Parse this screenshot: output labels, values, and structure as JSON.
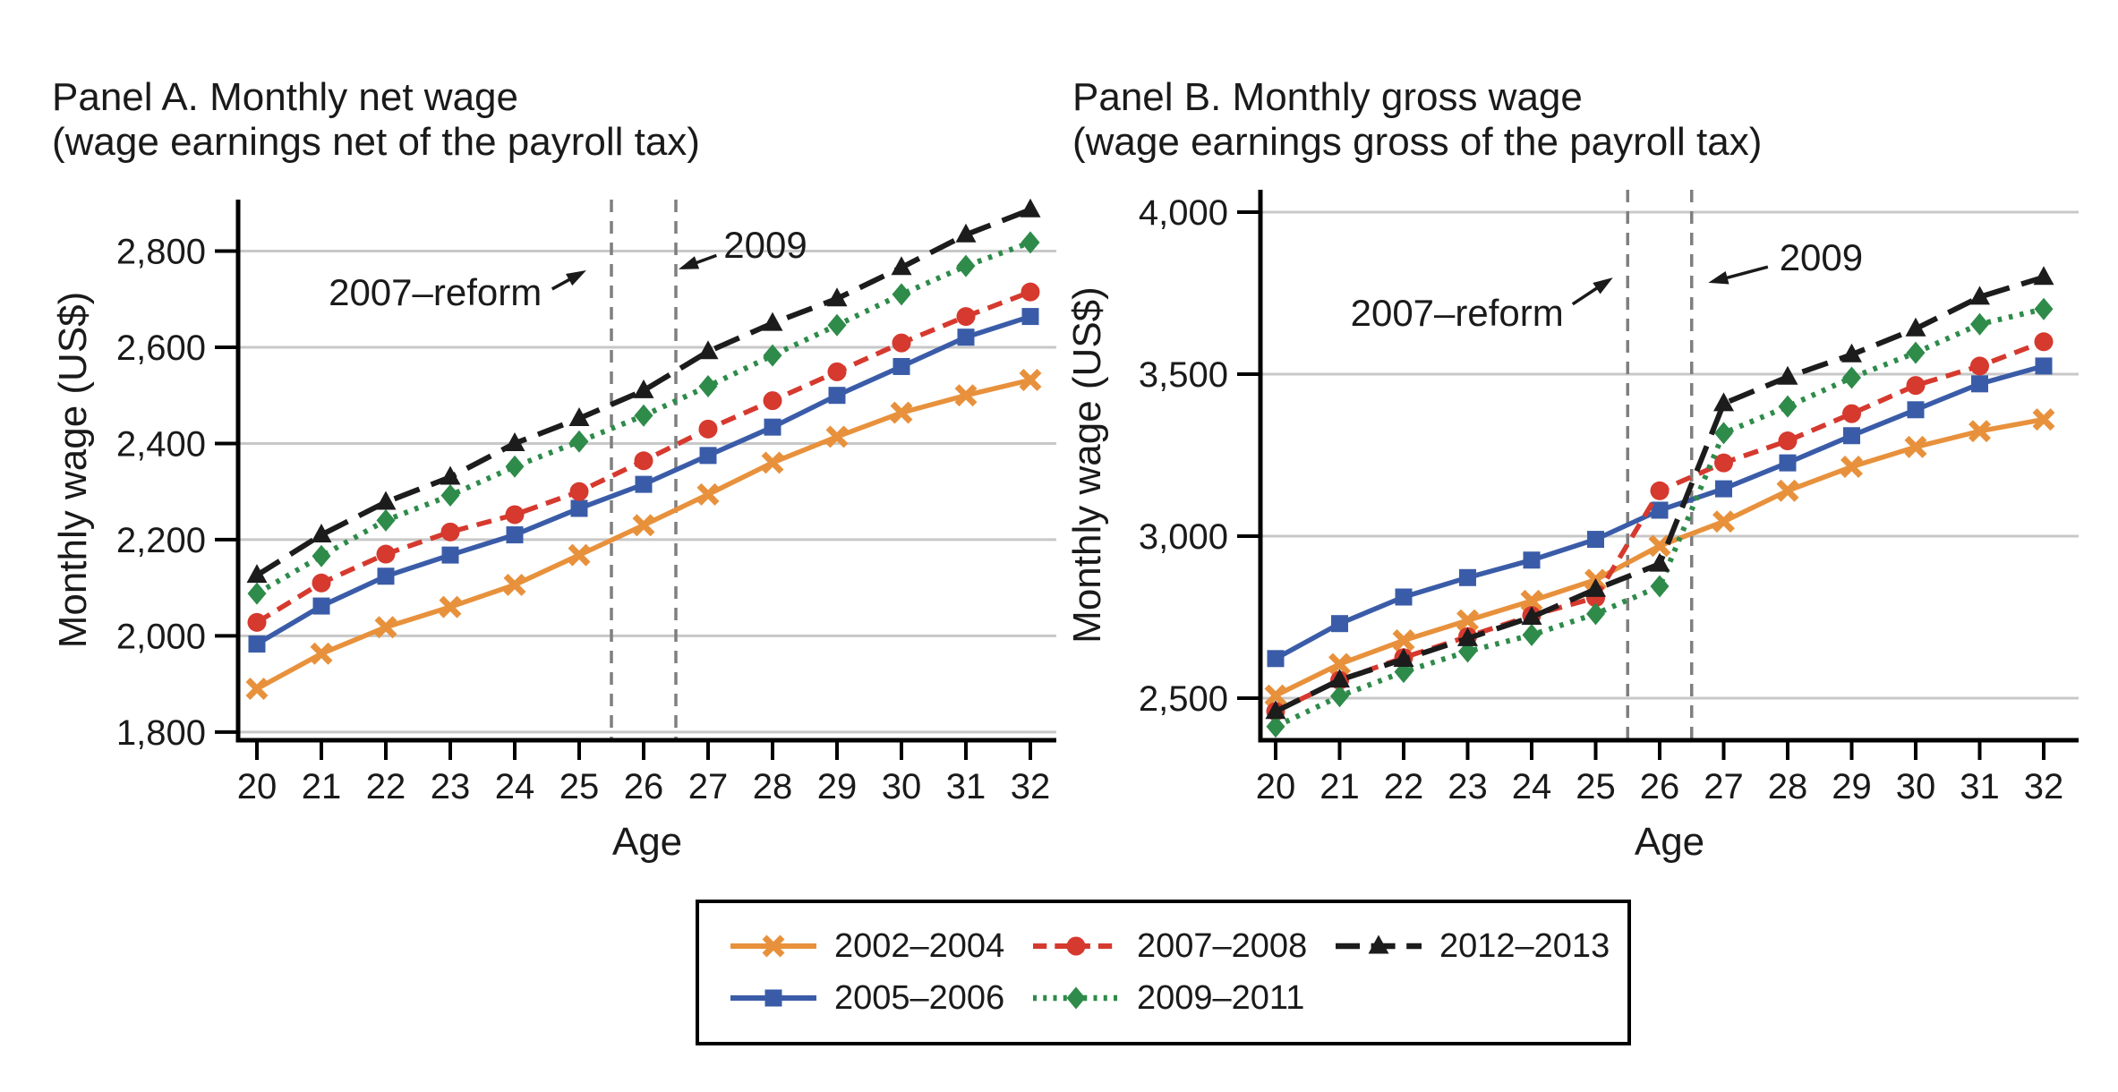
{
  "figure": {
    "colors": {
      "axis": "#000000",
      "gridline": "#c8c8c8",
      "reform_line": "#7f7f7f",
      "text": "#1a1a1a"
    },
    "legend": {
      "entries": [
        {
          "label": "2002–2004",
          "series_index": 0
        },
        {
          "label": "2005–2006",
          "series_index": 1
        },
        {
          "label": "2007–2008",
          "series_index": 2
        },
        {
          "label": "2009–2011",
          "series_index": 3
        },
        {
          "label": "2012–2013",
          "series_index": 4
        }
      ]
    }
  },
  "chart_data": [
    {
      "id": "panel_a",
      "type": "line",
      "title": "Panel A. Monthly net wage",
      "subtitle": "(wage earnings net of the payroll tax)",
      "xlabel": "Age",
      "ylabel": "Monthly wage (US$)",
      "grid": "horizontal",
      "x": [
        20,
        21,
        22,
        23,
        24,
        25,
        26,
        27,
        28,
        29,
        30,
        31,
        32
      ],
      "xticks": [
        20,
        21,
        22,
        23,
        24,
        25,
        26,
        27,
        28,
        29,
        30,
        31,
        32
      ],
      "xtick_labels": [
        "20",
        "21",
        "22",
        "23",
        "24",
        "25",
        "26",
        "27",
        "28",
        "29",
        "30",
        "31",
        "32"
      ],
      "xlim": [
        19.7,
        32.4
      ],
      "ylim": [
        1783,
        2907
      ],
      "yticks": [
        1800,
        2000,
        2200,
        2400,
        2600,
        2800
      ],
      "ytick_labels": [
        "1,800",
        "2,000",
        "2,200",
        "2,400",
        "2,600",
        "2,800"
      ],
      "vlines": [
        25.5,
        26.5
      ],
      "series": [
        {
          "name": "2002–2004",
          "color": "#E8913C",
          "line": "solid",
          "marker": "x",
          "values": [
            1890,
            1963,
            2018,
            2060,
            2106,
            2168,
            2230,
            2294,
            2360,
            2414,
            2464,
            2500,
            2532
          ]
        },
        {
          "name": "2005–2006",
          "color": "#3A5CA8",
          "line": "solid",
          "marker": "square",
          "values": [
            1983,
            2062,
            2124,
            2168,
            2210,
            2265,
            2315,
            2375,
            2434,
            2500,
            2560,
            2621,
            2664
          ]
        },
        {
          "name": "2007–2008",
          "color": "#D6392E",
          "line": "dashed",
          "marker": "circle",
          "values": [
            2028,
            2110,
            2170,
            2216,
            2252,
            2300,
            2364,
            2430,
            2489,
            2549,
            2609,
            2664,
            2715
          ]
        },
        {
          "name": "2009–2011",
          "color": "#2E8B4A",
          "line": "dotted",
          "marker": "diamond",
          "values": [
            2088,
            2166,
            2240,
            2292,
            2352,
            2404,
            2458,
            2519,
            2583,
            2646,
            2710,
            2769,
            2818
          ]
        },
        {
          "name": "2012–2013",
          "color": "#1C1C1C",
          "line": "longdash",
          "marker": "triangle",
          "values": [
            2126,
            2210,
            2278,
            2330,
            2400,
            2452,
            2510,
            2591,
            2650,
            2701,
            2766,
            2834,
            2886
          ]
        }
      ],
      "annotations": [
        {
          "text": "2007–reform",
          "anchor": "end",
          "age": 24.42,
          "value": 2713,
          "arrow": {
            "from": [
              24.58,
              2721
            ],
            "to": [
              25.11,
              2760
            ]
          }
        },
        {
          "text": "2009",
          "anchor": "start",
          "age": 27.24,
          "value": 2812,
          "arrow": {
            "from": [
              27.13,
              2791
            ],
            "to": [
              26.54,
              2762
            ]
          }
        }
      ]
    },
    {
      "id": "panel_b",
      "type": "line",
      "title": "Panel B. Monthly gross wage",
      "subtitle": "(wage earnings gross of the payroll tax)",
      "xlabel": "Age",
      "ylabel": "Monthly wage (US$)",
      "grid": "horizontal",
      "x": [
        20,
        21,
        22,
        23,
        24,
        25,
        26,
        27,
        28,
        29,
        30,
        31,
        32
      ],
      "xticks": [
        20,
        21,
        22,
        23,
        24,
        25,
        26,
        27,
        28,
        29,
        30,
        31,
        32
      ],
      "xtick_labels": [
        "20",
        "21",
        "22",
        "23",
        "24",
        "25",
        "26",
        "27",
        "28",
        "29",
        "30",
        "31",
        "32"
      ],
      "xlim": [
        19.76,
        32.55
      ],
      "ylim": [
        2370,
        4069
      ],
      "yticks": [
        2500,
        3000,
        3500,
        4000
      ],
      "ytick_labels": [
        "2,500",
        "3,000",
        "3,500",
        "4,000"
      ],
      "vlines": [
        25.5,
        26.5
      ],
      "series": [
        {
          "name": "2002–2004",
          "color": "#E8913C",
          "line": "solid",
          "marker": "x",
          "values": [
            2508,
            2605,
            2678,
            2740,
            2800,
            2865,
            2970,
            3045,
            3140,
            3214,
            3275,
            3324,
            3360
          ]
        },
        {
          "name": "2005–2006",
          "color": "#3A5CA8",
          "line": "solid",
          "marker": "square",
          "values": [
            2622,
            2730,
            2812,
            2872,
            2926,
            2990,
            3080,
            3146,
            3226,
            3310,
            3390,
            3470,
            3525
          ]
        },
        {
          "name": "2007–2008",
          "color": "#D6392E",
          "line": "dashed",
          "marker": "circle",
          "values": [
            2459,
            2555,
            2625,
            2690,
            2755,
            2810,
            3140,
            3226,
            3294,
            3378,
            3465,
            3525,
            3600
          ]
        },
        {
          "name": "2009–2011",
          "color": "#2E8B4A",
          "line": "dotted",
          "marker": "diamond",
          "values": [
            2412,
            2506,
            2581,
            2644,
            2695,
            2760,
            2845,
            3318,
            3400,
            3489,
            3566,
            3654,
            3701
          ]
        },
        {
          "name": "2012–2013",
          "color": "#1C1C1C",
          "line": "longdash",
          "marker": "triangle",
          "values": [
            2459,
            2556,
            2620,
            2684,
            2750,
            2836,
            2914,
            3409,
            3491,
            3560,
            3640,
            3738,
            3799
          ]
        }
      ],
      "annotations": [
        {
          "text": "2007–reform",
          "anchor": "end",
          "age": 24.5,
          "value": 3688,
          "arrow": {
            "from": [
              24.64,
              3716
            ],
            "to": [
              25.27,
              3798
            ]
          }
        },
        {
          "text": "2009",
          "anchor": "start",
          "age": 27.87,
          "value": 3859,
          "arrow": {
            "from": [
              27.69,
              3831
            ],
            "to": [
              26.76,
              3782
            ]
          }
        }
      ]
    }
  ]
}
